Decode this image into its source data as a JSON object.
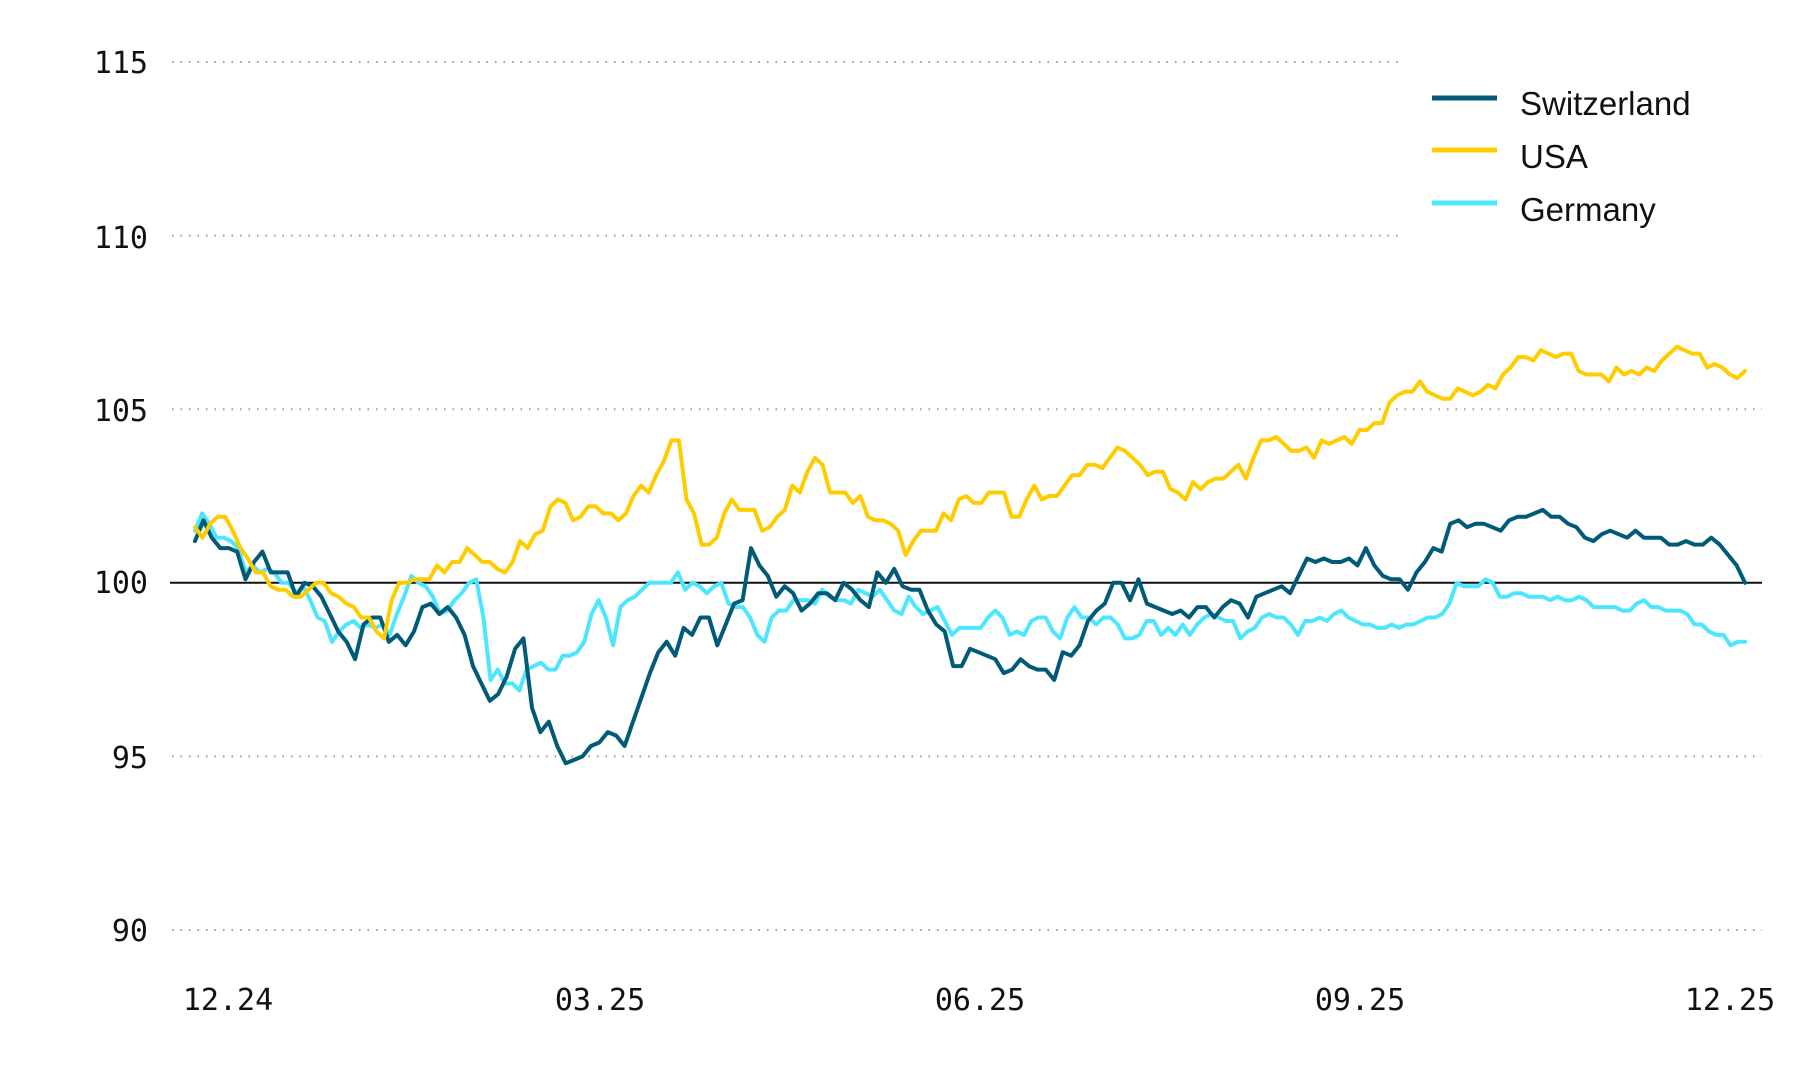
{
  "chart_data": {
    "type": "line",
    "title": "",
    "xlabel": "",
    "ylabel": "",
    "ylim": [
      90,
      115
    ],
    "yticks": [
      115,
      110,
      105,
      100,
      95,
      90
    ],
    "xticks": [
      "12.24",
      "03.25",
      "06.25",
      "09.25",
      "12.25"
    ],
    "reference_line": 100,
    "grid": "dotted horizontal",
    "legend_position": "top-right",
    "x_start": "12.24",
    "x_end": "12.25",
    "series": [
      {
        "name": "Switzerland",
        "color": "#005A78",
        "values": [
          101.2,
          101.8,
          101.3,
          101.0,
          101.0,
          100.9,
          100.1,
          100.6,
          100.9,
          100.3,
          100.3,
          100.3,
          99.6,
          100.0,
          99.9,
          99.6,
          99.1,
          98.6,
          98.3,
          97.8,
          98.8,
          99.0,
          99.0,
          98.3,
          98.5,
          98.2,
          98.6,
          99.3,
          99.4,
          99.1,
          99.3,
          99.0,
          98.5,
          97.6,
          97.1,
          96.6,
          96.8,
          97.3,
          98.1,
          98.4,
          96.4,
          95.7,
          96.0,
          95.3,
          94.8,
          94.9,
          95.0,
          95.3,
          95.4,
          95.7,
          95.6,
          95.3,
          96.0,
          96.7,
          97.4,
          98.0,
          98.3,
          97.9,
          98.7,
          98.5,
          99.0,
          99.0,
          98.2,
          98.8,
          99.4,
          99.5,
          101.0,
          100.5,
          100.2,
          99.6,
          99.9,
          99.7,
          99.2,
          99.4,
          99.7,
          99.7,
          99.5,
          100.0,
          99.8,
          99.5,
          99.3,
          100.3,
          100.0,
          100.4,
          99.9,
          99.8,
          99.8,
          99.2,
          98.8,
          98.6,
          97.6,
          97.6,
          98.1,
          98.0,
          97.9,
          97.8,
          97.4,
          97.5,
          97.8,
          97.6,
          97.5,
          97.5,
          97.2,
          98.0,
          97.9,
          98.2,
          98.9,
          99.2,
          99.4,
          100.0,
          100.0,
          99.5,
          100.1,
          99.4,
          99.3,
          99.2,
          99.1,
          99.2,
          99.0,
          99.3,
          99.3,
          99.0,
          99.3,
          99.5,
          99.4,
          99.0,
          99.6,
          99.7,
          99.8,
          99.9,
          99.7,
          100.2,
          100.7,
          100.6,
          100.7,
          100.6,
          100.6,
          100.7,
          100.5,
          101.0,
          100.5,
          100.2,
          100.1,
          100.1,
          99.8,
          100.3,
          100.6,
          101.0,
          100.9,
          101.7,
          101.8,
          101.6,
          101.7,
          101.7,
          101.6,
          101.5,
          101.8,
          101.9,
          101.9,
          102.0,
          102.1,
          101.9,
          101.9,
          101.7,
          101.6,
          101.3,
          101.2,
          101.4,
          101.5,
          101.4,
          101.3,
          101.5,
          101.3,
          101.3,
          101.3,
          101.1,
          101.1,
          101.2,
          101.1,
          101.1,
          101.3,
          101.1,
          100.8,
          100.5,
          100.0
        ]
      },
      {
        "name": "USA",
        "color": "#FFCC00",
        "values": [
          101.6,
          101.3,
          101.7,
          101.9,
          101.9,
          101.5,
          101.0,
          100.7,
          100.3,
          100.3,
          99.9,
          99.8,
          99.8,
          99.6,
          99.6,
          99.8,
          100.0,
          100.0,
          99.7,
          99.6,
          99.4,
          99.3,
          99.0,
          99.0,
          98.6,
          98.4,
          99.5,
          100.0,
          100.0,
          100.1,
          100.1,
          100.1,
          100.5,
          100.3,
          100.6,
          100.6,
          101.0,
          100.8,
          100.6,
          100.6,
          100.4,
          100.3,
          100.6,
          101.2,
          101.0,
          101.4,
          101.5,
          102.2,
          102.4,
          102.3,
          101.8,
          101.9,
          102.2,
          102.2,
          102.0,
          102.0,
          101.8,
          102.0,
          102.5,
          102.8,
          102.6,
          103.1,
          103.5,
          104.1,
          104.1,
          102.4,
          102.0,
          101.1,
          101.1,
          101.3,
          102.0,
          102.4,
          102.1,
          102.1,
          102.1,
          101.5,
          101.6,
          101.9,
          102.1,
          102.8,
          102.6,
          103.2,
          103.6,
          103.4,
          102.6,
          102.6,
          102.6,
          102.3,
          102.5,
          101.9,
          101.8,
          101.8,
          101.7,
          101.5,
          100.8,
          101.2,
          101.5,
          101.5,
          101.5,
          102.0,
          101.8,
          102.4,
          102.5,
          102.3,
          102.3,
          102.6,
          102.6,
          102.6,
          101.9,
          101.9,
          102.4,
          102.8,
          102.4,
          102.5,
          102.5,
          102.8,
          103.1,
          103.1,
          103.4,
          103.4,
          103.3,
          103.6,
          103.9,
          103.8,
          103.6,
          103.4,
          103.1,
          103.2,
          103.2,
          102.7,
          102.6,
          102.4,
          102.9,
          102.7,
          102.9,
          103.0,
          103.0,
          103.2,
          103.4,
          103.0,
          103.6,
          104.1,
          104.1,
          104.2,
          104.0,
          103.8,
          103.8,
          103.9,
          103.6,
          104.1,
          104.0,
          104.1,
          104.2,
          104.0,
          104.4,
          104.4,
          104.6,
          104.6,
          105.2,
          105.4,
          105.5,
          105.5,
          105.8,
          105.5,
          105.4,
          105.3,
          105.3,
          105.6,
          105.5,
          105.4,
          105.5,
          105.7,
          105.6,
          106.0,
          106.2,
          106.5,
          106.5,
          106.4,
          106.7,
          106.6,
          106.5,
          106.6,
          106.6,
          106.1,
          106.0,
          106.0,
          106.0,
          105.8,
          106.2,
          106.0,
          106.1,
          106.0,
          106.2,
          106.1,
          106.4,
          106.6,
          106.8,
          106.7,
          106.6,
          106.6,
          106.2,
          106.3,
          106.2,
          106.0,
          105.9,
          106.1
        ]
      },
      {
        "name": "Germany",
        "color": "#4DE6FF",
        "values": [
          101.5,
          102.0,
          101.7,
          101.3,
          101.3,
          101.2,
          101.0,
          100.3,
          100.5,
          100.3,
          100.4,
          100.3,
          100.0,
          100.0,
          99.7,
          99.9,
          99.5,
          99.0,
          98.9,
          98.3,
          98.6,
          98.8,
          98.9,
          98.7,
          98.8,
          98.7,
          98.8,
          98.5,
          99.1,
          99.6,
          100.2,
          100.0,
          99.9,
          99.6,
          99.1,
          99.2,
          99.5,
          99.7,
          100.0,
          100.1,
          99.0,
          97.2,
          97.5,
          97.1,
          97.1,
          96.9,
          97.5,
          97.6,
          97.7,
          97.5,
          97.5,
          97.9,
          97.9,
          98.0,
          98.3,
          99.1,
          99.5,
          99.0,
          98.2,
          99.3,
          99.5,
          99.6,
          99.8,
          100.0,
          100.0,
          100.0,
          100.0,
          100.3,
          99.8,
          100.0,
          99.9,
          99.7,
          99.9,
          100.0,
          99.4,
          99.3,
          99.3,
          99.0,
          98.5,
          98.3,
          99.0,
          99.2,
          99.2,
          99.5,
          99.5,
          99.5,
          99.4,
          99.8,
          99.6,
          99.5,
          99.5,
          99.4,
          99.8,
          99.7,
          99.6,
          99.8,
          99.5,
          99.2,
          99.1,
          99.6,
          99.3,
          99.1,
          99.2,
          99.3,
          98.9,
          98.5,
          98.7,
          98.7,
          98.7,
          98.7,
          99.0,
          99.2,
          99.0,
          98.5,
          98.6,
          98.5,
          98.9,
          99.0,
          99.0,
          98.6,
          98.4,
          99.0,
          99.3,
          99.0,
          99.0,
          98.8,
          99.0,
          99.0,
          98.8,
          98.4,
          98.4,
          98.5,
          98.9,
          98.9,
          98.5,
          98.7,
          98.5,
          98.8,
          98.5,
          98.8,
          99.0,
          99.1,
          99.0,
          98.9,
          98.9,
          98.4,
          98.6,
          98.7,
          99.0,
          99.1,
          99.0,
          99.0,
          98.8,
          98.5,
          98.9,
          98.9,
          99.0,
          98.9,
          99.1,
          99.2,
          99.0,
          98.9,
          98.8,
          98.8,
          98.7,
          98.7,
          98.8,
          98.7,
          98.8,
          98.8,
          98.9,
          99.0,
          99.0,
          99.1,
          99.4,
          100.0,
          99.9,
          99.9,
          99.9,
          100.1,
          100.0,
          99.6,
          99.6,
          99.7,
          99.7,
          99.6,
          99.6,
          99.6,
          99.5,
          99.6,
          99.5,
          99.5,
          99.6,
          99.5,
          99.3,
          99.3,
          99.3,
          99.3,
          99.2,
          99.2,
          99.4,
          99.5,
          99.3,
          99.3,
          99.2,
          99.2,
          99.2,
          99.1,
          98.8,
          98.8,
          98.6,
          98.5,
          98.5,
          98.2,
          98.3,
          98.3
        ]
      }
    ]
  },
  "legend": {
    "items": [
      {
        "label": "Switzerland",
        "color": "#005A78"
      },
      {
        "label": "USA",
        "color": "#FFCC00"
      },
      {
        "label": "Germany",
        "color": "#4DE6FF"
      }
    ]
  },
  "axes": {
    "y_labels": [
      "115",
      "110",
      "105",
      "100",
      "95",
      "90"
    ],
    "x_labels": [
      "12.24",
      "03.25",
      "06.25",
      "09.25",
      "12.25"
    ]
  }
}
